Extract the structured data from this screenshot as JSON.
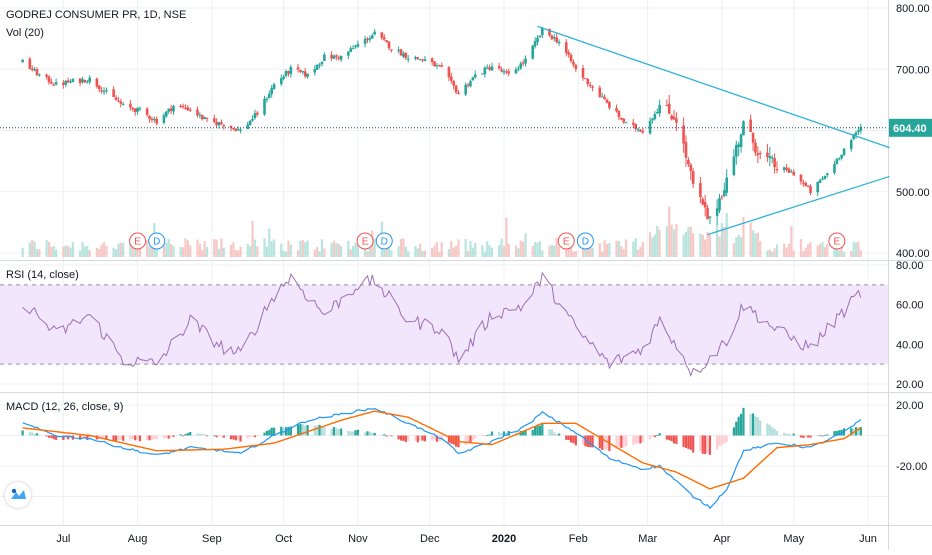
{
  "header": {
    "symbol_title": "GODREJ CONSUMER PR, 1D, NSE",
    "volume_title": "Vol (20)",
    "rsi_title": "RSI (14, close)",
    "macd_title": "MACD (12, 26, close, 9)"
  },
  "colors": {
    "up": "#26a69a",
    "down": "#ef5350",
    "trendline": "#2eb3d6",
    "rsi_line": "#9c6fb6",
    "rsi_band": "#f2e6fc",
    "macd_line": "#2196f3",
    "signal_line": "#ff6d00",
    "price_line": "#1e4e79",
    "badge_earnings": "#ef5350",
    "badge_dividend": "#2196f3"
  },
  "icons": {
    "logo": "tradingview-logo-icon"
  },
  "chart_data": [
    {
      "type": "candlestick",
      "title": "GODREJ CONSUMER PR, 1D, NSE",
      "y_ticks": [
        "400.00",
        "500.00",
        "600.00",
        "700.00",
        "800.00"
      ],
      "ylim": [
        400,
        800
      ],
      "last_price_label": "604.40",
      "last_price": 604.4,
      "x_tick_labels": [
        "Jul",
        "Aug",
        "Sep",
        "Oct",
        "Nov",
        "Dec",
        "2020",
        "Feb",
        "Mar",
        "Apr",
        "May",
        "Jun"
      ],
      "x": [
        "2019-06",
        "2019-07",
        "2019-08",
        "2019-09",
        "2019-10",
        "2019-11",
        "2019-12",
        "2020-01",
        "2020-02",
        "2020-03",
        "2020-04",
        "2020-05",
        "2020-06"
      ],
      "close_profile": [
        [
          "2019-06-14",
          712
        ],
        [
          "2019-06-21",
          690
        ],
        [
          "2019-06-28",
          675
        ],
        [
          "2019-07-05",
          680
        ],
        [
          "2019-07-12",
          684
        ],
        [
          "2019-07-19",
          662
        ],
        [
          "2019-07-26",
          640
        ],
        [
          "2019-08-02",
          632
        ],
        [
          "2019-08-09",
          615
        ],
        [
          "2019-08-16",
          640
        ],
        [
          "2019-08-23",
          635
        ],
        [
          "2019-08-30",
          615
        ],
        [
          "2019-09-06",
          610
        ],
        [
          "2019-09-13",
          600
        ],
        [
          "2019-09-20",
          628
        ],
        [
          "2019-09-27",
          675
        ],
        [
          "2019-10-04",
          700
        ],
        [
          "2019-10-11",
          690
        ],
        [
          "2019-10-18",
          720
        ],
        [
          "2019-10-25",
          720
        ],
        [
          "2019-11-01",
          740
        ],
        [
          "2019-11-08",
          758
        ],
        [
          "2019-11-15",
          735
        ],
        [
          "2019-11-22",
          720
        ],
        [
          "2019-11-29",
          715
        ],
        [
          "2019-12-06",
          700
        ],
        [
          "2019-12-13",
          660
        ],
        [
          "2019-12-20",
          690
        ],
        [
          "2019-12-27",
          705
        ],
        [
          "2020-01-03",
          690
        ],
        [
          "2020-01-10",
          715
        ],
        [
          "2020-01-17",
          763
        ],
        [
          "2020-01-24",
          745
        ],
        [
          "2020-01-31",
          700
        ],
        [
          "2020-02-07",
          670
        ],
        [
          "2020-02-14",
          640
        ],
        [
          "2020-02-21",
          610
        ],
        [
          "2020-02-28",
          600
        ],
        [
          "2020-03-06",
          640
        ],
        [
          "2020-03-13",
          620
        ],
        [
          "2020-03-20",
          510
        ],
        [
          "2020-03-27",
          450
        ],
        [
          "2020-04-03",
          520
        ],
        [
          "2020-04-10",
          610
        ],
        [
          "2020-04-17",
          560
        ],
        [
          "2020-04-24",
          540
        ],
        [
          "2020-05-01",
          530
        ],
        [
          "2020-05-08",
          500
        ],
        [
          "2020-05-15",
          530
        ],
        [
          "2020-05-22",
          570
        ],
        [
          "2020-05-29",
          604.4
        ]
      ],
      "trendlines": [
        {
          "name": "upper",
          "from": [
            "2020-01-15",
            770
          ],
          "to": [
            "2020-06-10",
            572
          ]
        },
        {
          "name": "lower",
          "from": [
            "2020-03-26",
            430
          ],
          "to": [
            "2020-06-10",
            525
          ]
        }
      ],
      "events": [
        {
          "label": "E",
          "kind": "earnings",
          "date": "2019-08-01"
        },
        {
          "label": "D",
          "kind": "dividend",
          "date": "2019-08-09"
        },
        {
          "label": "E",
          "kind": "earnings",
          "date": "2019-11-04"
        },
        {
          "label": "D",
          "kind": "dividend",
          "date": "2019-11-12"
        },
        {
          "label": "E",
          "kind": "earnings",
          "date": "2020-01-27"
        },
        {
          "label": "D",
          "kind": "dividend",
          "date": "2020-02-04"
        },
        {
          "label": "E",
          "kind": "earnings",
          "date": "2020-05-19"
        }
      ]
    },
    {
      "type": "line",
      "title": "RSI (14, close)",
      "y_ticks": [
        "20.00",
        "40.00",
        "60.00",
        "80.00"
      ],
      "ylim": [
        20,
        80
      ],
      "band": [
        30,
        70
      ],
      "profile": [
        [
          "2019-06-14",
          62
        ],
        [
          "2019-06-28",
          45
        ],
        [
          "2019-07-12",
          55
        ],
        [
          "2019-07-26",
          32
        ],
        [
          "2019-08-09",
          30
        ],
        [
          "2019-08-23",
          52
        ],
        [
          "2019-09-06",
          38
        ],
        [
          "2019-09-13",
          35
        ],
        [
          "2019-09-27",
          65
        ],
        [
          "2019-10-04",
          74
        ],
        [
          "2019-10-18",
          55
        ],
        [
          "2019-11-01",
          70
        ],
        [
          "2019-11-08",
          72
        ],
        [
          "2019-11-22",
          52
        ],
        [
          "2019-12-06",
          48
        ],
        [
          "2019-12-13",
          32
        ],
        [
          "2019-12-27",
          55
        ],
        [
          "2020-01-10",
          60
        ],
        [
          "2020-01-17",
          74
        ],
        [
          "2020-01-31",
          48
        ],
        [
          "2020-02-14",
          30
        ],
        [
          "2020-02-28",
          38
        ],
        [
          "2020-03-06",
          52
        ],
        [
          "2020-03-13",
          40
        ],
        [
          "2020-03-20",
          25
        ],
        [
          "2020-04-03",
          42
        ],
        [
          "2020-04-10",
          60
        ],
        [
          "2020-04-24",
          47
        ],
        [
          "2020-05-08",
          38
        ],
        [
          "2020-05-22",
          57
        ],
        [
          "2020-05-29",
          66
        ]
      ]
    },
    {
      "type": "macd",
      "title": "MACD (12, 26, close, 9)",
      "y_ticks": [
        "20.00",
        "-20.00"
      ],
      "ylim": [
        -50,
        20
      ],
      "macd_profile": [
        [
          "2019-06-14",
          8
        ],
        [
          "2019-06-28",
          0
        ],
        [
          "2019-07-12",
          -2
        ],
        [
          "2019-07-26",
          -8
        ],
        [
          "2019-08-09",
          -13
        ],
        [
          "2019-08-23",
          -8
        ],
        [
          "2019-09-06",
          -10
        ],
        [
          "2019-09-13",
          -12
        ],
        [
          "2019-09-27",
          0
        ],
        [
          "2019-10-11",
          10
        ],
        [
          "2019-10-25",
          14
        ],
        [
          "2019-11-08",
          18
        ],
        [
          "2019-11-22",
          8
        ],
        [
          "2019-12-06",
          -2
        ],
        [
          "2019-12-13",
          -12
        ],
        [
          "2019-12-27",
          -4
        ],
        [
          "2020-01-10",
          6
        ],
        [
          "2020-01-17",
          15
        ],
        [
          "2020-01-31",
          2
        ],
        [
          "2020-02-14",
          -15
        ],
        [
          "2020-02-28",
          -22
        ],
        [
          "2020-03-06",
          -20
        ],
        [
          "2020-03-20",
          -40
        ],
        [
          "2020-03-27",
          -47
        ],
        [
          "2020-04-03",
          -35
        ],
        [
          "2020-04-10",
          -10
        ],
        [
          "2020-04-24",
          -5
        ],
        [
          "2020-05-08",
          -8
        ],
        [
          "2020-05-22",
          2
        ],
        [
          "2020-05-29",
          10
        ]
      ],
      "signal_profile": [
        [
          "2019-06-14",
          5
        ],
        [
          "2019-07-12",
          0
        ],
        [
          "2019-08-09",
          -10
        ],
        [
          "2019-09-06",
          -9
        ],
        [
          "2019-09-27",
          -5
        ],
        [
          "2019-10-25",
          10
        ],
        [
          "2019-11-08",
          16
        ],
        [
          "2019-11-22",
          12
        ],
        [
          "2019-12-13",
          -4
        ],
        [
          "2019-12-27",
          -6
        ],
        [
          "2020-01-17",
          8
        ],
        [
          "2020-01-31",
          8
        ],
        [
          "2020-02-14",
          -5
        ],
        [
          "2020-02-28",
          -18
        ],
        [
          "2020-03-13",
          -24
        ],
        [
          "2020-03-27",
          -35
        ],
        [
          "2020-04-10",
          -28
        ],
        [
          "2020-04-24",
          -8
        ],
        [
          "2020-05-08",
          -6
        ],
        [
          "2020-05-22",
          -2
        ],
        [
          "2020-05-29",
          5
        ]
      ]
    }
  ]
}
